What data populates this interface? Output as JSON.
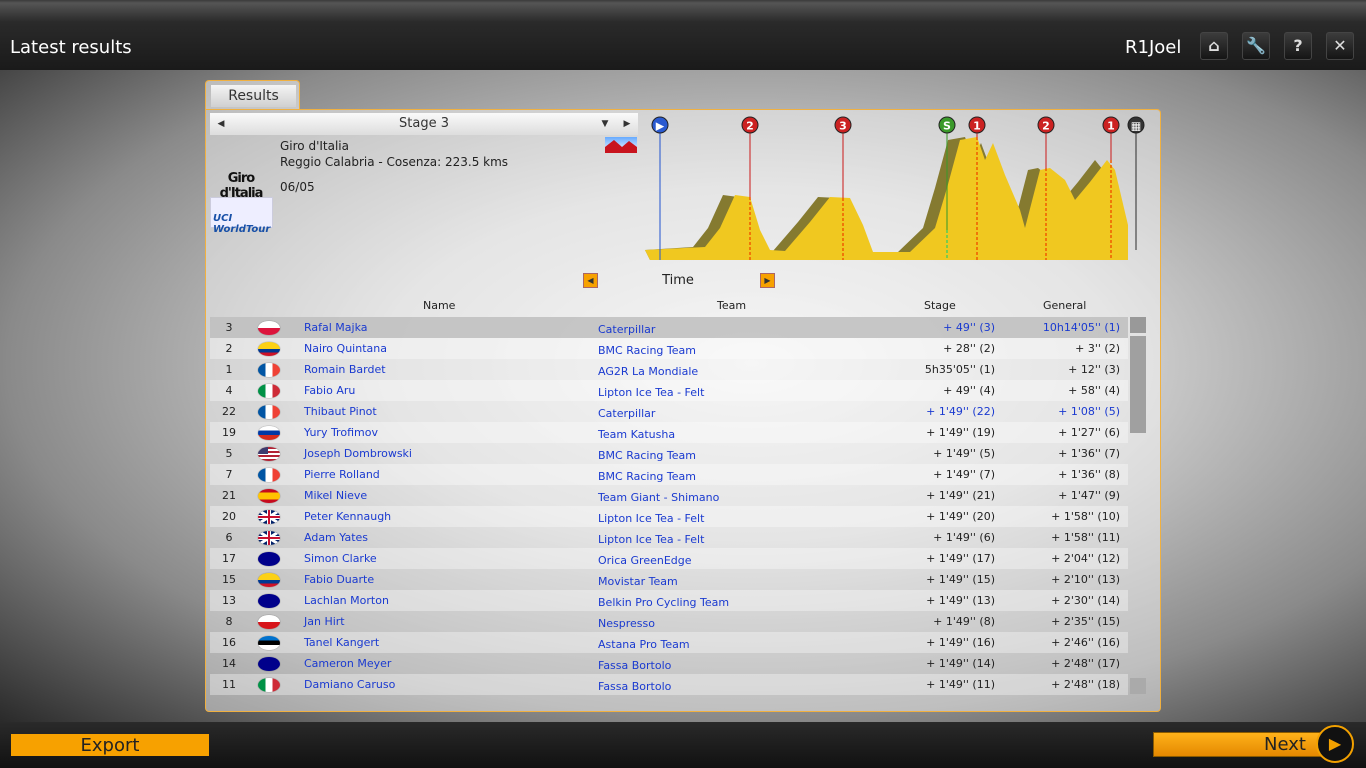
{
  "header": {
    "title": "Latest results",
    "user": "R1Joel",
    "buttons": [
      {
        "icon": "home-icon",
        "glyph": "⌂"
      },
      {
        "icon": "wrench-icon",
        "glyph": "🔧"
      },
      {
        "icon": "help-icon",
        "glyph": "?"
      },
      {
        "icon": "close-icon",
        "glyph": "✕"
      }
    ]
  },
  "tab": "Results",
  "stage": {
    "name": "Stage 3",
    "race": "Giro d'Italia",
    "route": "Reggio Calabria - Cosenza: 223.5 kms",
    "date": "06/05",
    "logo_race": "Giro d'Italia",
    "logo_tour": "UCI WorldTour"
  },
  "profile": {
    "markers": [
      "start",
      "2",
      "3",
      "S",
      "1",
      "2",
      "1",
      "finish"
    ],
    "colors": {
      "fill": "#f0c820",
      "shadow": "#857a30",
      "climb": "#cc2222",
      "sprint": "#3a9a2a",
      "start": "#2a5ad0"
    }
  },
  "view": {
    "label": "Time"
  },
  "columns": {
    "name": "Name",
    "team": "Team",
    "stage": "Stage",
    "general": "General"
  },
  "rows": [
    {
      "pos": "3",
      "flag": "PL",
      "name": "Rafal Majka",
      "team": "Caterpillar",
      "stage": "+ 49'' (3)",
      "general": "10h14'05'' (1)",
      "blue": true
    },
    {
      "pos": "2",
      "flag": "CO",
      "name": "Nairo Quintana",
      "team": "BMC Racing Team",
      "stage": "+ 28'' (2)",
      "general": "+ 3'' (2)"
    },
    {
      "pos": "1",
      "flag": "FR",
      "name": "Romain Bardet",
      "team": "AG2R La Mondiale",
      "stage": "5h35'05'' (1)",
      "general": "+ 12'' (3)"
    },
    {
      "pos": "4",
      "flag": "IT",
      "name": "Fabio Aru",
      "team": "Lipton Ice Tea - Felt",
      "stage": "+ 49'' (4)",
      "general": "+ 58'' (4)"
    },
    {
      "pos": "22",
      "flag": "FR",
      "name": "Thibaut Pinot",
      "team": "Caterpillar",
      "stage": "+ 1'49'' (22)",
      "general": "+ 1'08'' (5)",
      "blue": true
    },
    {
      "pos": "19",
      "flag": "RU",
      "name": "Yury Trofimov",
      "team": "Team Katusha",
      "stage": "+ 1'49'' (19)",
      "general": "+ 1'27'' (6)"
    },
    {
      "pos": "5",
      "flag": "US",
      "name": "Joseph Dombrowski",
      "team": "BMC Racing Team",
      "stage": "+ 1'49'' (5)",
      "general": "+ 1'36'' (7)"
    },
    {
      "pos": "7",
      "flag": "FR",
      "name": "Pierre Rolland",
      "team": "BMC Racing Team",
      "stage": "+ 1'49'' (7)",
      "general": "+ 1'36'' (8)"
    },
    {
      "pos": "21",
      "flag": "ES",
      "name": "Mikel Nieve",
      "team": "Team Giant - Shimano",
      "stage": "+ 1'49'' (21)",
      "general": "+ 1'47'' (9)"
    },
    {
      "pos": "20",
      "flag": "GB",
      "name": "Peter Kennaugh",
      "team": "Lipton Ice Tea - Felt",
      "stage": "+ 1'49'' (20)",
      "general": "+ 1'58'' (10)"
    },
    {
      "pos": "6",
      "flag": "GB",
      "name": "Adam Yates",
      "team": "Lipton Ice Tea - Felt",
      "stage": "+ 1'49'' (6)",
      "general": "+ 1'58'' (11)"
    },
    {
      "pos": "17",
      "flag": "AU",
      "name": "Simon Clarke",
      "team": "Orica GreenEdge",
      "stage": "+ 1'49'' (17)",
      "general": "+ 2'04'' (12)"
    },
    {
      "pos": "15",
      "flag": "CO",
      "name": "Fabio Duarte",
      "team": "Movistar Team",
      "stage": "+ 1'49'' (15)",
      "general": "+ 2'10'' (13)"
    },
    {
      "pos": "13",
      "flag": "AU",
      "name": "Lachlan Morton",
      "team": "Belkin Pro Cycling Team",
      "stage": "+ 1'49'' (13)",
      "general": "+ 2'30'' (14)"
    },
    {
      "pos": "8",
      "flag": "CZ",
      "name": "Jan Hirt",
      "team": "Nespresso",
      "stage": "+ 1'49'' (8)",
      "general": "+ 2'35'' (15)"
    },
    {
      "pos": "16",
      "flag": "EE",
      "name": "Tanel Kangert",
      "team": "Astana Pro Team",
      "stage": "+ 1'49'' (16)",
      "general": "+ 2'46'' (16)"
    },
    {
      "pos": "14",
      "flag": "AU",
      "name": "Cameron Meyer",
      "team": "Fassa Bortolo",
      "stage": "+ 1'49'' (14)",
      "general": "+ 2'48'' (17)"
    },
    {
      "pos": "11",
      "flag": "IT",
      "name": "Damiano Caruso",
      "team": "Fassa Bortolo",
      "stage": "+ 1'49'' (11)",
      "general": "+ 2'48'' (18)"
    }
  ],
  "footer": {
    "export": "Export",
    "next": "Next"
  }
}
